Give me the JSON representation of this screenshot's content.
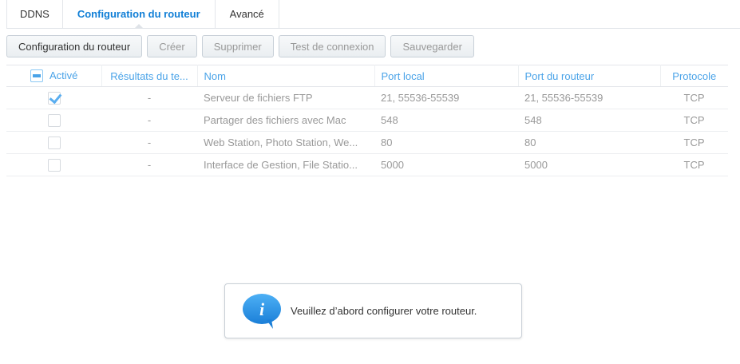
{
  "tabs": [
    "DDNS",
    "Configuration du routeur",
    "Avancé"
  ],
  "active_tab": 1,
  "toolbar": {
    "config": "Configuration du routeur",
    "create": "Créer",
    "delete": "Supprimer",
    "test": "Test de connexion",
    "save": "Sauvegarder"
  },
  "table": {
    "headers": [
      "Activé",
      "Résultats du te...",
      "Nom",
      "Port local",
      "Port du routeur",
      "Protocole"
    ],
    "rows": [
      {
        "enabled": true,
        "result": "-",
        "name": "Serveur de fichiers FTP",
        "local": "21, 55536-55539",
        "router": "21, 55536-55539",
        "protocol": "TCP"
      },
      {
        "enabled": false,
        "result": "-",
        "name": "Partager des fichiers avec Mac",
        "local": "548",
        "router": "548",
        "protocol": "TCP"
      },
      {
        "enabled": false,
        "result": "-",
        "name": "Web Station, Photo Station, We...",
        "local": "80",
        "router": "80",
        "protocol": "TCP"
      },
      {
        "enabled": false,
        "result": "-",
        "name": "Interface de Gestion, File Statio...",
        "local": "5000",
        "router": "5000",
        "protocol": "TCP"
      }
    ]
  },
  "toast": {
    "icon": "info-icon",
    "message": "Veuillez d’abord configurer votre routeur."
  },
  "colors": {
    "accent": "#0f7ed6",
    "header_text": "#4aa3e8"
  }
}
